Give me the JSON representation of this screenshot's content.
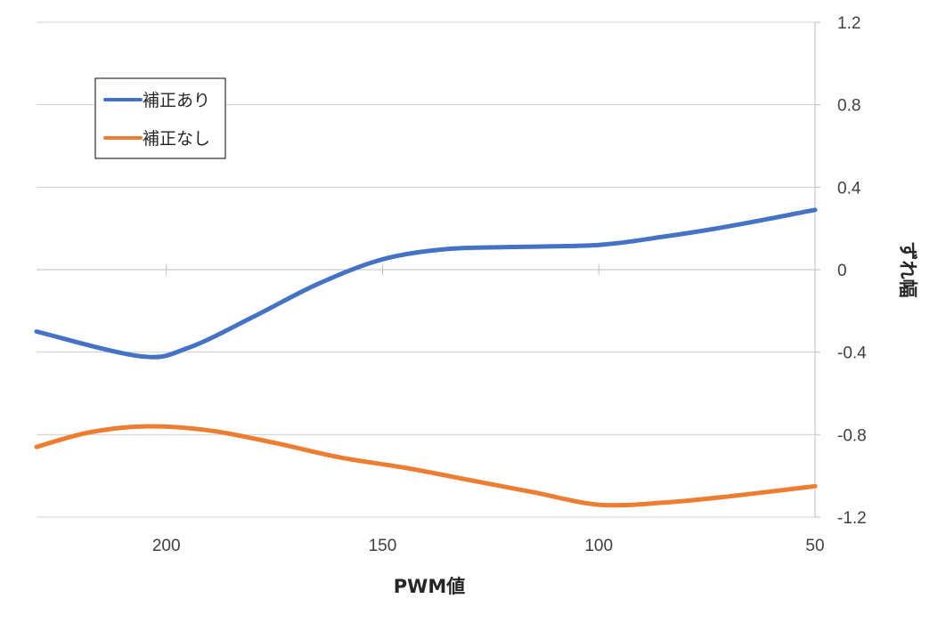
{
  "chart_data": {
    "type": "line",
    "title": "",
    "xlabel": "PWM値",
    "ylabel": "ずれ幅",
    "x_reversed": true,
    "xlim": [
      230,
      50
    ],
    "ylim": [
      -1.2,
      1.2
    ],
    "x_ticks": [
      200,
      150,
      100,
      50
    ],
    "x_tick_labels": [
      "200",
      "150",
      "100",
      "50"
    ],
    "y_ticks": [
      1.2,
      0.8,
      0.4,
      0,
      -0.4,
      -0.8,
      -1.2
    ],
    "y_tick_labels": [
      "1.2",
      "0.8",
      "0.4",
      "0",
      "-0.4",
      "-0.8",
      "-1.2"
    ],
    "y_axis_position": "right",
    "grid": true,
    "legend_position": "top-left",
    "series": [
      {
        "name": "補正あり",
        "color": "#4472C4",
        "x": [
          230,
          206,
          195,
          180,
          165,
          150,
          135,
          120,
          100,
          85,
          70,
          50
        ],
        "y": [
          -0.3,
          -0.42,
          -0.38,
          -0.23,
          -0.07,
          0.05,
          0.1,
          0.11,
          0.12,
          0.16,
          0.21,
          0.29
        ]
      },
      {
        "name": "補正なし",
        "color": "#ED7D31",
        "x": [
          230,
          218,
          205,
          190,
          175,
          160,
          145,
          130,
          115,
          100,
          85,
          70,
          50
        ],
        "y": [
          -0.86,
          -0.79,
          -0.76,
          -0.78,
          -0.84,
          -0.91,
          -0.96,
          -1.02,
          -1.08,
          -1.14,
          -1.13,
          -1.1,
          -1.05
        ]
      }
    ]
  }
}
